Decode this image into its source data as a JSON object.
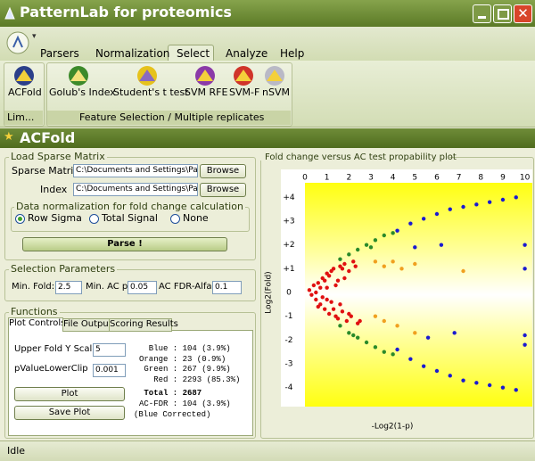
{
  "window": {
    "title": "PatternLab for proteomics"
  },
  "ribbon": {
    "tabs": [
      "Parsers",
      "Normalization",
      "Select",
      "Analyze",
      "Help"
    ],
    "groups": [
      {
        "label": "Lim...",
        "buttons": [
          "ACFold"
        ]
      },
      {
        "label": "Feature Selection / Multiple replicates",
        "buttons": [
          "Golub's Index",
          "Student's t test",
          "SVM RFE",
          "SVM-F",
          "nSVM"
        ]
      }
    ]
  },
  "panel": {
    "title": "ACFold"
  },
  "load": {
    "title": "Load Sparse Matrix",
    "sparse_label": "Sparse Matrix",
    "sparse_value": "C:\\Documents and Settings\\Paulo\\",
    "index_label": "Index",
    "index_value": "C:\\Documents and Settings\\Paulo\\",
    "browse": "Browse",
    "norm_title": "Data normalization for fold change calculation",
    "norm_options": [
      "Row Sigma",
      "Total Signal",
      "None"
    ],
    "parse": "Parse !"
  },
  "selection": {
    "title": "Selection Parameters",
    "fields": [
      {
        "label": "Min. Fold:",
        "value": "2.5"
      },
      {
        "label": "Min. AC p:",
        "value": "0.05"
      },
      {
        "label": "AC FDR-Alfa:",
        "value": "0.1"
      }
    ]
  },
  "functions": {
    "title": "Functions",
    "tabs": [
      "Plot Controls",
      "File Output",
      "Scoring Results"
    ],
    "upper_label": "Upper Fold Y Scale",
    "upper_value": "5",
    "clip_label": "pValueLowerClip",
    "clip_value": "0.001",
    "plot": "Plot",
    "save": "Save Plot",
    "stats": [
      "  Blue : 104 (3.9%)",
      "Orange : 23 (0.9%)",
      " Green : 267 (9.9%)",
      "   Red : 2293 (85.3%)"
    ],
    "total": " Total : 2687",
    "fdr": "AC-FDR : 104 (3.9%)",
    "fdr_note": "(Blue Corrected)"
  },
  "chart_data": {
    "type": "scatter",
    "title": "Fold change versus AC test propability plot",
    "xlabel": "-Log2(1-p)",
    "ylabel": "Log2(Fold)",
    "xlim": [
      0,
      10.3
    ],
    "ylim": [
      -4.5,
      4.5
    ],
    "xticks": [
      0,
      1,
      2,
      3,
      4,
      5,
      6,
      7,
      8,
      9,
      10
    ],
    "yticks": [
      {
        "value": 4,
        "label": "+4"
      },
      {
        "value": 3,
        "label": "+3"
      },
      {
        "value": 2,
        "label": "+2"
      },
      {
        "value": 1,
        "label": "+1"
      },
      0,
      -1,
      -2,
      -3,
      -4
    ],
    "grid": false,
    "series": [
      {
        "color": "#e01010",
        "x": [
          0.2,
          0.3,
          0.4,
          0.5,
          0.5,
          0.6,
          0.7,
          0.8,
          0.8,
          0.9,
          1.0,
          1.0,
          1.1,
          1.2,
          1.2,
          1.3,
          1.4,
          1.5,
          1.5,
          1.6,
          1.7,
          1.8,
          1.9,
          2.0,
          2.1,
          2.2,
          2.4,
          0.6,
          0.9,
          1.1,
          1.3,
          1.6,
          1.8,
          2.0,
          2.3,
          1.0,
          1.4,
          0.7,
          1.7,
          2.5
        ],
        "y": [
          0.1,
          -0.1,
          0.3,
          -0.3,
          0.0,
          0.4,
          -0.5,
          0.6,
          -0.2,
          -0.7,
          0.8,
          0.2,
          -0.9,
          0.9,
          -0.4,
          1.0,
          -1.0,
          0.5,
          -1.1,
          1.1,
          -0.8,
          1.2,
          -1.2,
          0.9,
          -1.0,
          1.3,
          -1.3,
          -0.6,
          0.5,
          0.7,
          -0.7,
          -0.5,
          0.6,
          -0.9,
          1.1,
          -0.3,
          0.3,
          0.2,
          1.0,
          -1.2
        ]
      },
      {
        "color": "#2a8a2a",
        "x": [
          1.6,
          2.0,
          2.4,
          2.8,
          3.2,
          3.6,
          4.0,
          1.6,
          2.0,
          2.4,
          2.8,
          3.2,
          3.6,
          4.0,
          3.0,
          2.2
        ],
        "y": [
          1.4,
          1.6,
          1.8,
          2.0,
          2.2,
          2.4,
          2.5,
          -1.4,
          -1.7,
          -1.9,
          -2.1,
          -2.3,
          -2.5,
          -2.6,
          1.9,
          -1.8
        ]
      },
      {
        "color": "#f0a020",
        "x": [
          3.2,
          3.6,
          4.0,
          4.4,
          5.0,
          7.2,
          3.2,
          3.6,
          4.2,
          5.0
        ],
        "y": [
          1.3,
          1.1,
          1.3,
          1.0,
          1.2,
          0.9,
          -1.0,
          -1.2,
          -1.4,
          -1.7
        ]
      },
      {
        "color": "#1a1ad0",
        "x": [
          4.2,
          4.8,
          5.4,
          6.0,
          6.6,
          7.2,
          7.8,
          8.4,
          9.0,
          9.6,
          10.0,
          10.0,
          4.2,
          4.8,
          5.4,
          6.0,
          6.6,
          7.2,
          7.8,
          8.4,
          9.0,
          9.6,
          10.0,
          10.0,
          5.0,
          6.2,
          6.8,
          5.6
        ],
        "y": [
          2.6,
          2.9,
          3.1,
          3.3,
          3.5,
          3.6,
          3.7,
          3.8,
          3.9,
          4.0,
          2.0,
          1.0,
          -2.4,
          -2.8,
          -3.1,
          -3.3,
          -3.5,
          -3.7,
          -3.8,
          -3.9,
          -4.0,
          -4.1,
          -2.2,
          -1.8,
          1.9,
          2.0,
          -1.7,
          -1.9
        ]
      }
    ]
  },
  "status": "Idle"
}
